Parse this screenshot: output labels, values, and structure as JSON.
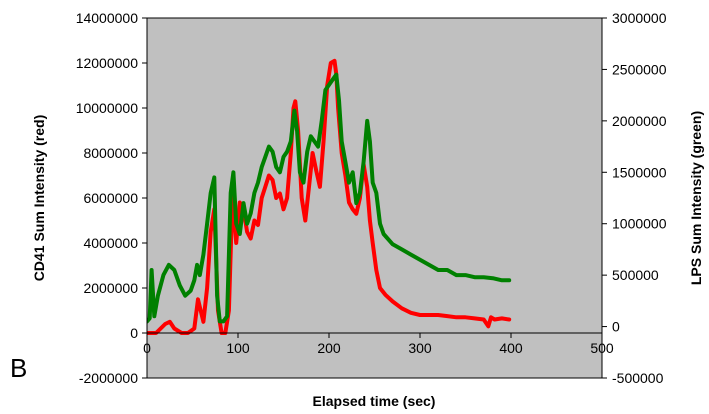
{
  "panel_label": "B",
  "chart_data": {
    "type": "line",
    "title": "",
    "xlabel": "Elapsed time (sec)",
    "ylabel_left": "CD41 Sum Intensity (red)",
    "ylabel_right": "LPS Sum Intensity (green)",
    "xlim": [
      0,
      500
    ],
    "ylim_left": [
      -2000000,
      14000000
    ],
    "ylim_right": [
      -500000,
      3000000
    ],
    "x_ticks": [
      0,
      100,
      200,
      300,
      400,
      500
    ],
    "y_left_ticks": [
      -2000000,
      0,
      2000000,
      4000000,
      6000000,
      8000000,
      10000000,
      12000000,
      14000000
    ],
    "y_right_ticks": [
      -500000,
      0,
      500000,
      1000000,
      1500000,
      2000000,
      2500000,
      3000000
    ],
    "grid": false,
    "plot_background": "#c0c0c0",
    "series": [
      {
        "axis": "left",
        "color": "#ff0000",
        "x": [
          0,
          10,
          20,
          25,
          30,
          38,
          45,
          52,
          56,
          62,
          66,
          70,
          74,
          78,
          82,
          86,
          90,
          94,
          98,
          102,
          106,
          110,
          114,
          118,
          122,
          126,
          130,
          134,
          138,
          142,
          146,
          150,
          154,
          158,
          161,
          163,
          166,
          170,
          174,
          178,
          182,
          186,
          190,
          194,
          198,
          202,
          206,
          208,
          210,
          214,
          218,
          222,
          226,
          230,
          234,
          238,
          242,
          245,
          248,
          252,
          256,
          262,
          270,
          280,
          290,
          300,
          310,
          320,
          330,
          340,
          350,
          360,
          370,
          375,
          378,
          382,
          390,
          398
        ],
        "y": [
          0,
          0,
          400000,
          500000,
          200000,
          0,
          0,
          200000,
          1500000,
          500000,
          2000000,
          4500000,
          5500000,
          1000000,
          0,
          0,
          1000000,
          6200000,
          4000000,
          5800000,
          5500000,
          4500000,
          4200000,
          5000000,
          4800000,
          6000000,
          6500000,
          7000000,
          6800000,
          6000000,
          6200000,
          5500000,
          6000000,
          8000000,
          10000000,
          10300000,
          9000000,
          6000000,
          5000000,
          6500000,
          8000000,
          7200000,
          6500000,
          8500000,
          11000000,
          12000000,
          12100000,
          11500000,
          10000000,
          8000000,
          7000000,
          5800000,
          5500000,
          5300000,
          6000000,
          7500000,
          6500000,
          5000000,
          4000000,
          2800000,
          2000000,
          1700000,
          1400000,
          1100000,
          900000,
          800000,
          800000,
          800000,
          750000,
          700000,
          700000,
          650000,
          600000,
          300000,
          700000,
          600000,
          650000,
          600000
        ]
      },
      {
        "axis": "right",
        "color": "#008000",
        "x": [
          0,
          3,
          5,
          8,
          12,
          18,
          24,
          30,
          36,
          42,
          48,
          52,
          55,
          58,
          62,
          66,
          70,
          74,
          77,
          80,
          84,
          88,
          92,
          95,
          98,
          102,
          106,
          110,
          114,
          118,
          122,
          126,
          130,
          134,
          138,
          142,
          146,
          150,
          154,
          158,
          162,
          165,
          168,
          172,
          176,
          180,
          184,
          188,
          192,
          196,
          200,
          204,
          208,
          211,
          214,
          218,
          222,
          226,
          230,
          234,
          238,
          242,
          245,
          248,
          252,
          256,
          260,
          270,
          280,
          290,
          300,
          310,
          320,
          330,
          340,
          350,
          360,
          370,
          380,
          390,
          395,
          398
        ],
        "y": [
          50000,
          80000,
          550000,
          100000,
          300000,
          500000,
          600000,
          550000,
          400000,
          300000,
          350000,
          450000,
          600000,
          500000,
          700000,
          1000000,
          1300000,
          1450000,
          300000,
          50000,
          50000,
          100000,
          1300000,
          1500000,
          1000000,
          900000,
          1200000,
          1000000,
          1100000,
          1300000,
          1400000,
          1550000,
          1650000,
          1750000,
          1700000,
          1550000,
          1500000,
          1650000,
          1700000,
          1800000,
          2100000,
          1900000,
          1500000,
          1400000,
          1700000,
          1850000,
          1800000,
          1750000,
          2000000,
          2300000,
          2350000,
          2400000,
          2450000,
          2200000,
          1800000,
          1600000,
          1400000,
          1500000,
          1200000,
          1300000,
          1600000,
          2000000,
          1800000,
          1400000,
          1300000,
          1000000,
          900000,
          800000,
          750000,
          700000,
          650000,
          600000,
          550000,
          550000,
          500000,
          500000,
          480000,
          480000,
          470000,
          450000,
          450000,
          450000
        ]
      }
    ]
  }
}
